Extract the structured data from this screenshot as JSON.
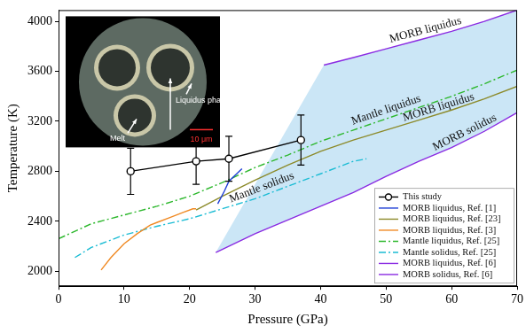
{
  "chart_data": {
    "type": "line",
    "x_label": "Pressure (GPa)",
    "y_label": "Temperature (K)",
    "xlim": [
      0,
      70
    ],
    "xticks": [
      0,
      10,
      20,
      30,
      40,
      50,
      60,
      70
    ],
    "ylim": [
      1880,
      4090
    ],
    "yticks": [
      2000,
      2400,
      2800,
      3200,
      3600,
      4000
    ],
    "grid": false,
    "legend": "lower right",
    "series": [
      {
        "name": "This study",
        "color": "#000000",
        "marker": "circle",
        "line_style": "solid",
        "x": [
          11,
          21,
          26,
          37
        ],
        "values": [
          2800,
          2880,
          2900,
          3050
        ],
        "errors": [
          185,
          185,
          180,
          200
        ]
      },
      {
        "name": "MORB liquidus, Ref. [1]",
        "color": "#1f3fd6",
        "marker": "none",
        "line_style": "solid",
        "x": [
          24.3,
          25.3,
          26,
          26.8,
          28
        ],
        "values": [
          2540,
          2640,
          2720,
          2760,
          2820
        ]
      },
      {
        "name": "MORB liquidus, Ref. [23]",
        "color": "#8c8a2a",
        "marker": "none",
        "line_style": "solid",
        "x": [
          21,
          25,
          30,
          35,
          40,
          45,
          50,
          55,
          60,
          65,
          70
        ],
        "values": [
          2490,
          2600,
          2730,
          2850,
          2960,
          3050,
          3130,
          3210,
          3290,
          3380,
          3480
        ]
      },
      {
        "name": "MORB liquidus, Ref. [3]",
        "color": "#f08a24",
        "marker": "none",
        "line_style": "solid",
        "x": [
          6.5,
          8,
          10,
          12,
          14,
          15,
          17,
          19,
          20.5,
          21
        ],
        "values": [
          2010,
          2110,
          2220,
          2300,
          2370,
          2390,
          2430,
          2470,
          2500,
          2500
        ]
      },
      {
        "name": "Mantle liquidus, Ref. [25]",
        "color": "#2eb82e",
        "marker": "none",
        "line_style": "dashdot",
        "x": [
          0,
          5,
          10,
          15,
          20,
          25,
          30,
          35,
          40,
          45,
          50,
          55,
          60,
          65,
          70
        ],
        "values": [
          2260,
          2380,
          2450,
          2520,
          2600,
          2710,
          2830,
          2930,
          3040,
          3130,
          3220,
          3310,
          3400,
          3500,
          3610
        ]
      },
      {
        "name": "Mantle solidus, Ref. [25]",
        "color": "#1bbcd4",
        "marker": "none",
        "line_style": "dashdot",
        "x": [
          2.5,
          5,
          10,
          15,
          20,
          25,
          30,
          35,
          40,
          45,
          47
        ],
        "values": [
          2110,
          2190,
          2290,
          2360,
          2420,
          2500,
          2580,
          2680,
          2780,
          2880,
          2900
        ]
      },
      {
        "name": "MORB liquidus, Ref. [6]",
        "color": "#8a2be2",
        "marker": "none",
        "line_style": "solid",
        "type": "area",
        "x": [
          40.5,
          45,
          50,
          55,
          60,
          65,
          70
        ],
        "values": [
          3650,
          3710,
          3780,
          3850,
          3920,
          4000,
          4090
        ]
      },
      {
        "name": "MORB solidus, Ref. [6]",
        "color": "#8a2be2",
        "marker": "none",
        "line_style": "solid",
        "type": "area",
        "x": [
          24,
          30,
          35,
          40,
          45,
          50,
          55,
          60,
          65,
          70
        ],
        "values": [
          2150,
          2300,
          2410,
          2520,
          2630,
          2760,
          2880,
          2990,
          3120,
          3270
        ]
      }
    ],
    "annotations": [
      {
        "text": "MORB liquidus",
        "x": 56,
        "y": 3930,
        "series": "MORB liquidus, Ref. [6]"
      },
      {
        "text": "Mantle liquidus",
        "x": 50,
        "y": 3290,
        "series": "Mantle liquidus, Ref. [25]"
      },
      {
        "text": "MORB liquidus",
        "x": 58,
        "y": 3311,
        "series": "MORB liquidus, Ref. [23]"
      },
      {
        "text": "MORB solidus",
        "x": 62,
        "y": 3110,
        "series": "MORB solidus, Ref. [6]"
      },
      {
        "text": "Mantle solidus",
        "x": 31,
        "y": 2670,
        "series": "Mantle solidus, Ref. [25]"
      }
    ],
    "inset_labels": [
      "Liquidus phase",
      "Melt",
      "10 μm"
    ]
  }
}
